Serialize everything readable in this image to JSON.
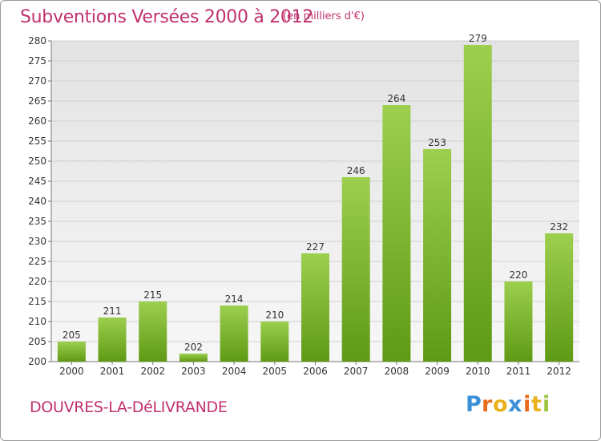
{
  "chart_data": {
    "type": "bar",
    "title": "Subventions Versées 2000 à 2012",
    "subtitle": "(en milliers d'€)",
    "categories": [
      "2000",
      "2001",
      "2002",
      "2003",
      "2004",
      "2005",
      "2006",
      "2007",
      "2008",
      "2009",
      "2010",
      "2011",
      "2012"
    ],
    "values": [
      205,
      211,
      215,
      202,
      214,
      210,
      227,
      246,
      264,
      253,
      279,
      220,
      232
    ],
    "ylim": [
      200,
      280
    ],
    "yticks": [
      200,
      205,
      210,
      215,
      220,
      225,
      230,
      235,
      240,
      245,
      250,
      255,
      260,
      265,
      270,
      275,
      280
    ],
    "xlabel": "",
    "ylabel": "",
    "grid": true,
    "colors": {
      "bar_top": "#9ccf4e",
      "bar_bottom": "#5f9a14",
      "grid": "#d0d0d0",
      "background_top": "#e3e3e3",
      "background_bottom": "#f7f7f7",
      "title": "#c0316e"
    }
  },
  "footer": {
    "commune": "DOUVRES-LA-DéLIVRANDE"
  },
  "logo": {
    "letters": [
      "P",
      "r",
      "o",
      "x",
      "i",
      "t",
      "i"
    ],
    "colors": [
      "#3b8fd6",
      "#e86a1c",
      "#e8b21c",
      "#3b8fd6",
      "#e86a1c",
      "#e8b21c",
      "#9bc53d"
    ]
  }
}
